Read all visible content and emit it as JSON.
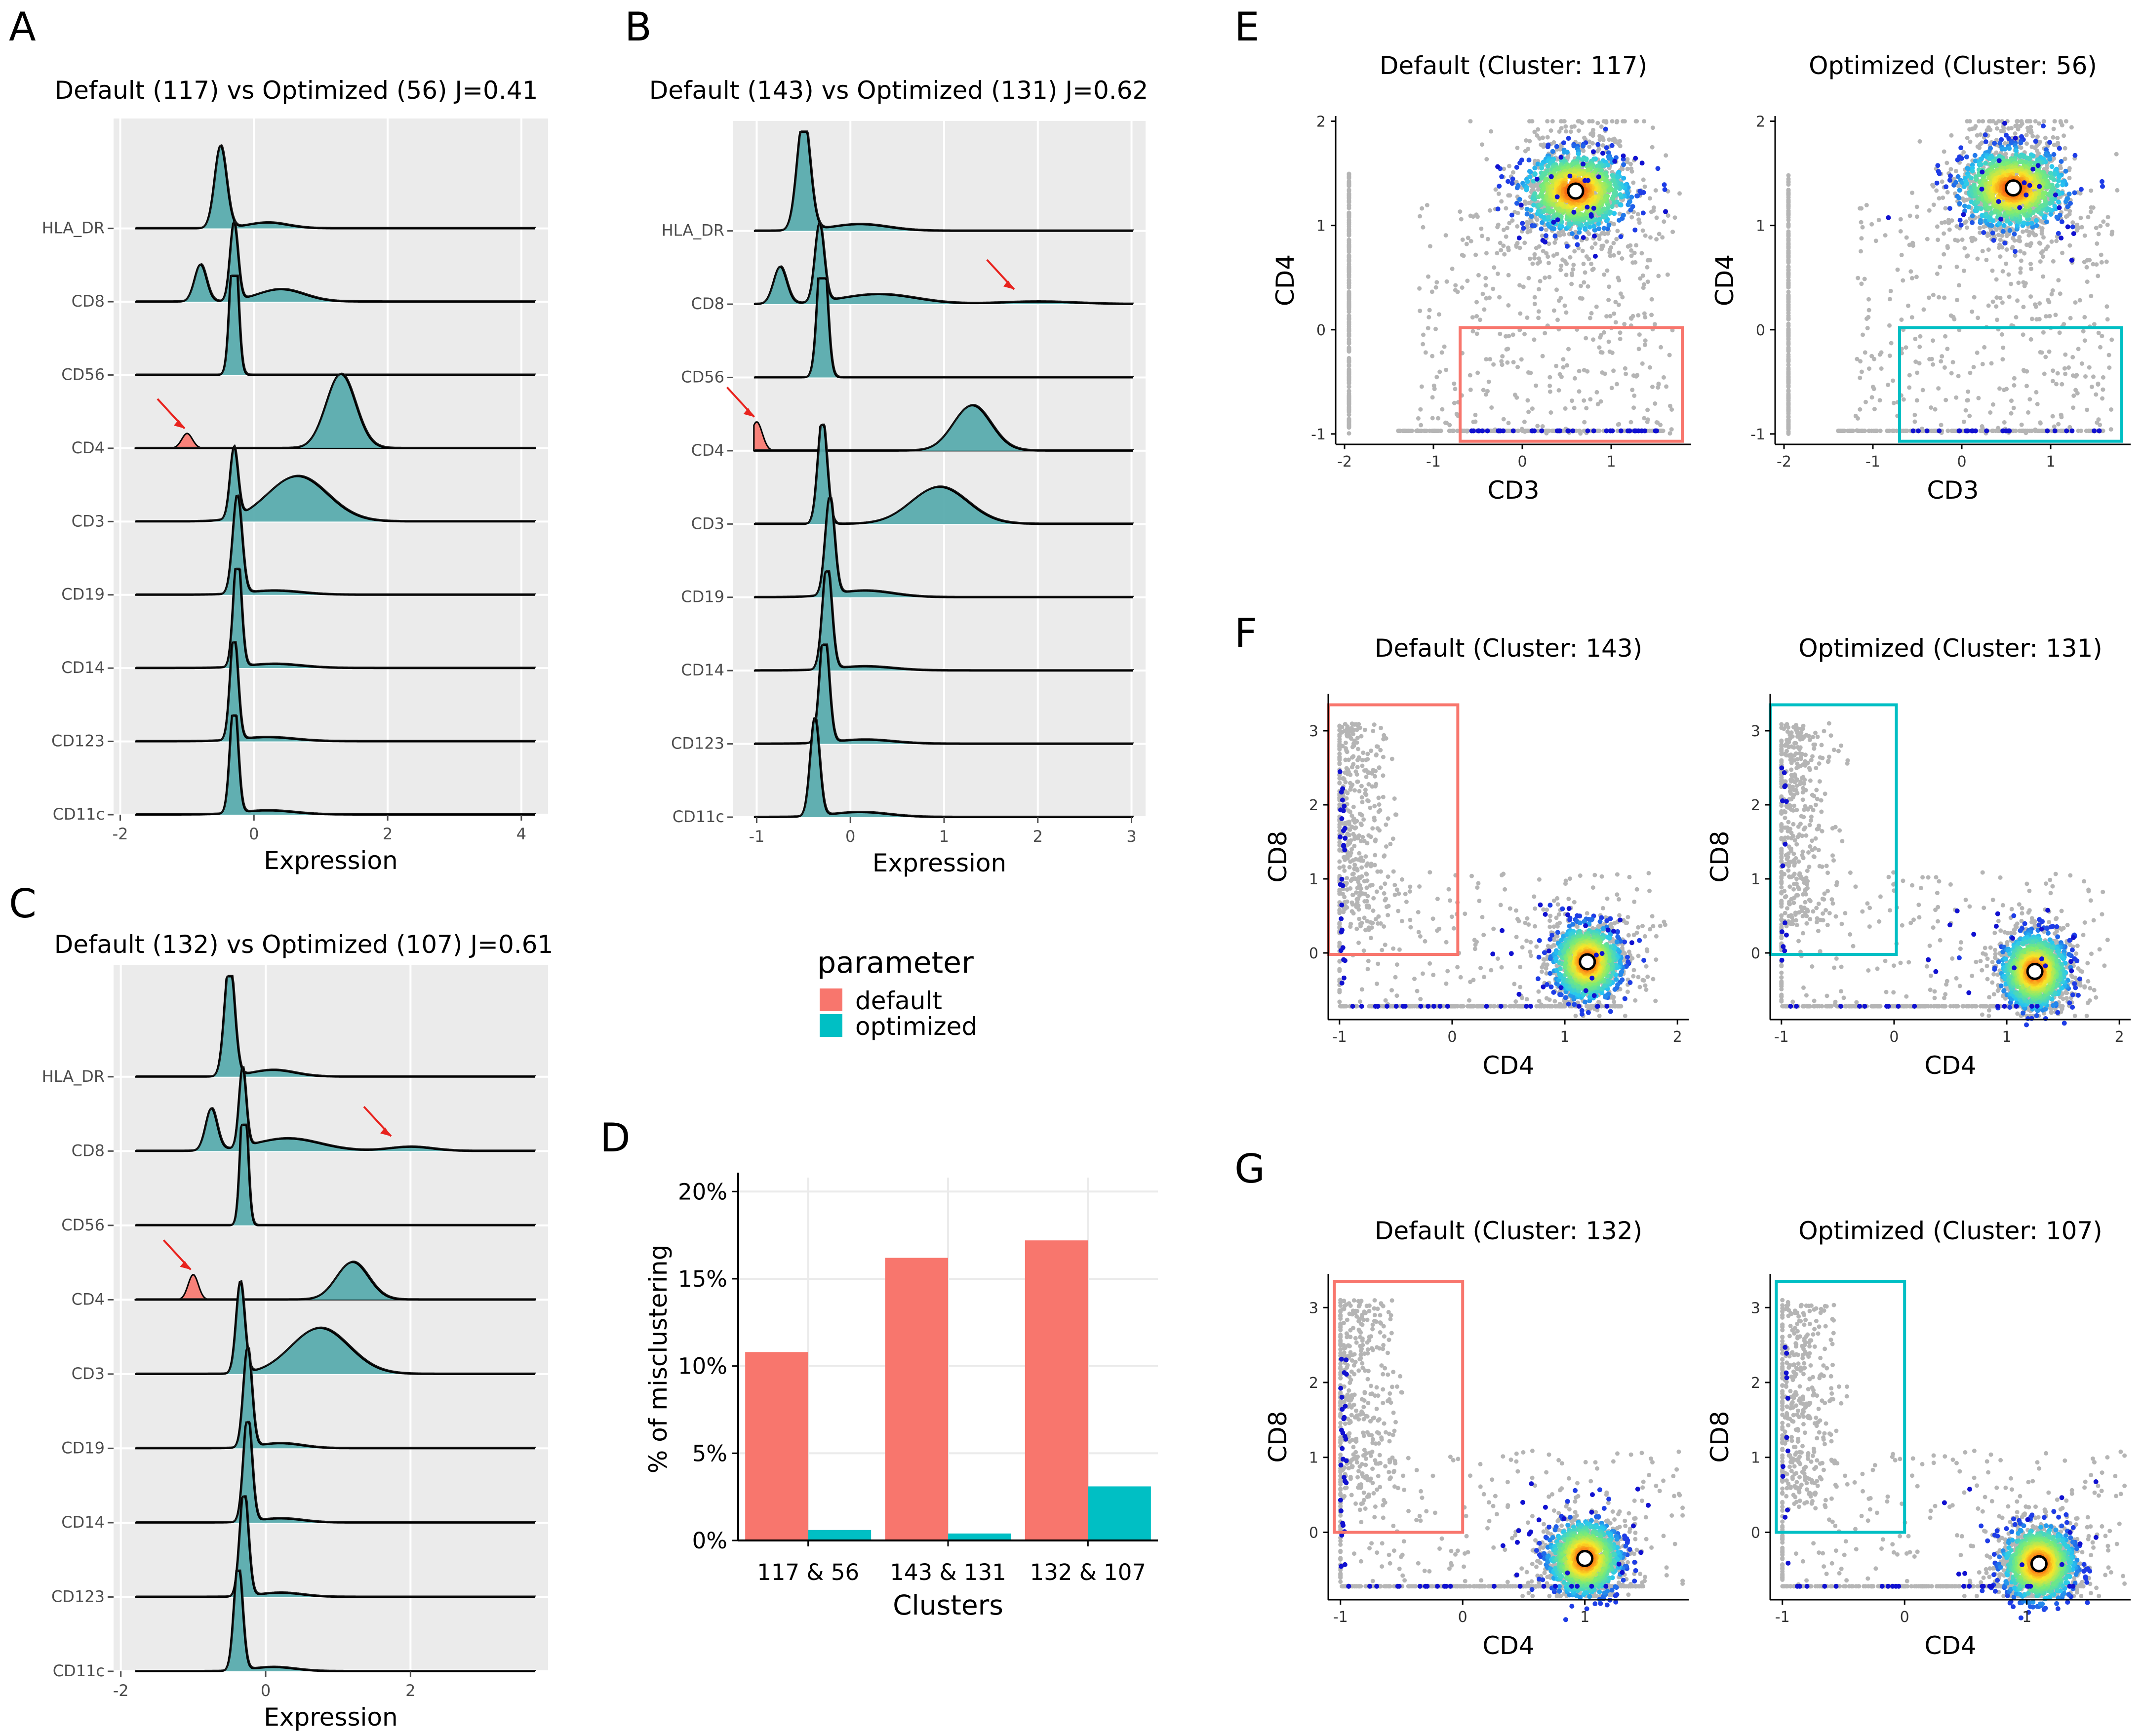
{
  "colors": {
    "default": "#F8766D",
    "optimized": "#00BFC4",
    "ridge_fill": "#5aacae",
    "panel_bg": "#EBEBEB",
    "point_grey": "#B5B5B5",
    "point_blue": "#1010D0",
    "arrow": "#E8231E"
  },
  "chart_data": [
    {
      "panel": "A",
      "type": "ridgeline",
      "title": "Default (117) vs Optimized (56) J=0.41",
      "xlabel": "Expression",
      "xticks": [
        -2,
        0,
        2,
        4
      ],
      "xlim": [
        -2.1,
        4.4
      ],
      "markers": [
        "HLA_DR",
        "CD8",
        "CD56",
        "CD4",
        "CD3",
        "CD19",
        "CD14",
        "CD123",
        "CD11c"
      ],
      "ridges": [
        {
          "marker": "HLA_DR",
          "peaks": [
            [
              -0.5,
              1.0,
              0.09
            ],
            [
              0.2,
              0.07,
              0.3
            ]
          ]
        },
        {
          "marker": "CD8",
          "peaks": [
            [
              -0.8,
              0.45,
              0.09
            ],
            [
              -0.3,
              0.95,
              0.06
            ],
            [
              0.4,
              0.15,
              0.35
            ]
          ]
        },
        {
          "marker": "CD56",
          "peaks": [
            [
              -0.3,
              1.8,
              0.06
            ]
          ]
        },
        {
          "marker": "CD4",
          "peaks": [
            [
              1.3,
              0.9,
              0.22
            ]
          ],
          "default_extra": [
            [
              -1.0,
              0.18,
              0.08
            ]
          ],
          "arrow": -1.0
        },
        {
          "marker": "CD3",
          "peaks": [
            [
              -0.3,
              0.85,
              0.06
            ],
            [
              0.65,
              0.55,
              0.45
            ]
          ]
        },
        {
          "marker": "CD19",
          "peaks": [
            [
              -0.25,
              1.2,
              0.07
            ],
            [
              0.3,
              0.05,
              0.4
            ]
          ]
        },
        {
          "marker": "CD14",
          "peaks": [
            [
              -0.25,
              1.4,
              0.06
            ],
            [
              0.3,
              0.05,
              0.4
            ]
          ]
        },
        {
          "marker": "CD123",
          "peaks": [
            [
              -0.3,
              1.3,
              0.06
            ],
            [
              0.2,
              0.05,
              0.4
            ]
          ]
        },
        {
          "marker": "CD11c",
          "peaks": [
            [
              -0.3,
              1.4,
              0.06
            ],
            [
              0.2,
              0.05,
              0.4
            ]
          ]
        }
      ]
    },
    {
      "panel": "B",
      "type": "ridgeline",
      "title": "Default (143) vs Optimized (131) J=0.62",
      "xlabel": "Expression",
      "xticks": [
        -1,
        0,
        1,
        2,
        3
      ],
      "xlim": [
        -1.25,
        3.15
      ],
      "markers": [
        "HLA_DR",
        "CD8",
        "CD56",
        "CD4",
        "CD3",
        "CD19",
        "CD14",
        "CD123",
        "CD11c"
      ],
      "ridges": [
        {
          "marker": "HLA_DR",
          "peaks": [
            [
              -0.5,
              1.4,
              0.07
            ],
            [
              0.1,
              0.08,
              0.3
            ]
          ]
        },
        {
          "marker": "CD8",
          "peaks": [
            [
              -0.75,
              0.45,
              0.07
            ],
            [
              -0.33,
              0.95,
              0.05
            ],
            [
              0.3,
              0.12,
              0.4
            ],
            [
              2.0,
              0.03,
              0.4
            ]
          ],
          "arrow": 1.8
        },
        {
          "marker": "CD56",
          "peaks": [
            [
              -0.3,
              1.8,
              0.05
            ]
          ]
        },
        {
          "marker": "CD4",
          "peaks": [
            [
              1.3,
              0.55,
              0.2
            ]
          ],
          "default_extra": [
            [
              -1.0,
              0.35,
              0.06
            ]
          ],
          "arrow": -1.0
        },
        {
          "marker": "CD3",
          "peaks": [
            [
              -0.3,
              1.3,
              0.05
            ],
            [
              0.95,
              0.45,
              0.3
            ]
          ]
        },
        {
          "marker": "CD19",
          "peaks": [
            [
              -0.22,
              1.2,
              0.05
            ],
            [
              0.15,
              0.08,
              0.3
            ]
          ]
        },
        {
          "marker": "CD14",
          "peaks": [
            [
              -0.25,
              1.3,
              0.05
            ],
            [
              0.15,
              0.05,
              0.3
            ]
          ]
        },
        {
          "marker": "CD123",
          "peaks": [
            [
              -0.28,
              1.4,
              0.05
            ],
            [
              0.15,
              0.05,
              0.3
            ]
          ]
        },
        {
          "marker": "CD11c",
          "peaks": [
            [
              -0.38,
              1.2,
              0.05
            ],
            [
              0.1,
              0.06,
              0.3
            ]
          ]
        }
      ]
    },
    {
      "panel": "C",
      "type": "ridgeline",
      "title": "Default (132) vs Optimized (107) J=0.61",
      "xlabel": "Expression",
      "xticks": [
        -2,
        0,
        2
      ],
      "xlim": [
        -2.1,
        3.9
      ],
      "markers": [
        "HLA_DR",
        "CD8",
        "CD56",
        "CD4",
        "CD3",
        "CD19",
        "CD14",
        "CD123",
        "CD11c"
      ],
      "ridges": [
        {
          "marker": "HLA_DR",
          "peaks": [
            [
              -0.5,
              1.4,
              0.07
            ],
            [
              0.1,
              0.08,
              0.3
            ]
          ]
        },
        {
          "marker": "CD8",
          "peaks": [
            [
              -0.75,
              0.5,
              0.08
            ],
            [
              -0.32,
              0.95,
              0.05
            ],
            [
              0.3,
              0.15,
              0.45
            ],
            [
              2.0,
              0.05,
              0.3
            ]
          ],
          "arrow": 1.8
        },
        {
          "marker": "CD56",
          "peaks": [
            [
              -0.3,
              1.7,
              0.05
            ]
          ]
        },
        {
          "marker": "CD4",
          "peaks": [
            [
              1.2,
              0.45,
              0.22
            ]
          ],
          "default_extra": [
            [
              -1.0,
              0.3,
              0.07
            ]
          ],
          "arrow": -1.0
        },
        {
          "marker": "CD3",
          "peaks": [
            [
              -0.35,
              1.1,
              0.06
            ],
            [
              0.75,
              0.55,
              0.4
            ]
          ]
        },
        {
          "marker": "CD19",
          "peaks": [
            [
              -0.25,
              1.2,
              0.06
            ],
            [
              0.2,
              0.06,
              0.3
            ]
          ]
        },
        {
          "marker": "CD14",
          "peaks": [
            [
              -0.25,
              1.3,
              0.06
            ],
            [
              0.2,
              0.05,
              0.3
            ]
          ]
        },
        {
          "marker": "CD123",
          "peaks": [
            [
              -0.3,
              1.3,
              0.06
            ],
            [
              0.2,
              0.05,
              0.3
            ]
          ]
        },
        {
          "marker": "CD11c",
          "peaks": [
            [
              -0.38,
              1.3,
              0.06
            ],
            [
              0.1,
              0.05,
              0.3
            ]
          ]
        }
      ]
    },
    {
      "panel": "D",
      "type": "bar",
      "categories": [
        "117 & 56",
        "143 & 131",
        "132 & 107"
      ],
      "series": [
        {
          "name": "default",
          "values": [
            10.8,
            16.2,
            17.2
          ]
        },
        {
          "name": "optimized",
          "values": [
            0.6,
            0.4,
            3.1
          ]
        }
      ],
      "xlabel": "Clusters",
      "ylabel": "% of misclustering",
      "yticks": [
        0,
        5,
        10,
        15,
        20
      ],
      "ytick_labels": [
        "0%",
        "5%",
        "10%",
        "15%",
        "20%"
      ],
      "ylim": [
        0,
        20.8
      ]
    },
    {
      "panel": "E",
      "type": "scatter",
      "plots": [
        {
          "title": "Default (Cluster: 117)",
          "gate_color": "default",
          "centroid": [
            0.6,
            1.33
          ],
          "gate": [
            -0.7,
            1.8,
            -1.07,
            0.02
          ]
        },
        {
          "title": "Optimized (Cluster: 56)",
          "gate_color": "optimized",
          "centroid": [
            0.58,
            1.36
          ],
          "gate": [
            -0.7,
            1.8,
            -1.07,
            0.02
          ]
        }
      ],
      "xlabel": "CD3",
      "ylabel": "CD4",
      "xticks": [
        -2,
        -1,
        0,
        1
      ],
      "yticks": [
        -1,
        0,
        1,
        2
      ],
      "xlim": [
        -2.1,
        1.9
      ],
      "ylim": [
        -1.1,
        2.05
      ]
    },
    {
      "panel": "F",
      "type": "scatter",
      "plots": [
        {
          "title": "Default (Cluster: 143)",
          "gate_color": "default",
          "centroid": [
            1.2,
            -0.12
          ],
          "gate": [
            -1.1,
            0.05,
            -0.02,
            3.35
          ]
        },
        {
          "title": "Optimized (Cluster: 131)",
          "gate_color": "optimized",
          "centroid": [
            1.25,
            -0.25
          ],
          "gate": [
            -1.1,
            0.02,
            -0.02,
            3.35
          ]
        }
      ],
      "xlabel": "CD4",
      "ylabel": "CD8",
      "xticks": [
        -1,
        0,
        1,
        2
      ],
      "yticks": [
        0,
        1,
        2,
        3
      ],
      "xlim": [
        -1.1,
        2.1
      ],
      "ylim": [
        -0.9,
        3.5
      ]
    },
    {
      "panel": "G",
      "type": "scatter",
      "plots": [
        {
          "title": "Default (Cluster: 132)",
          "gate_color": "default",
          "centroid": [
            1.0,
            -0.35
          ],
          "gate": [
            -1.05,
            0.0,
            0.0,
            3.35
          ]
        },
        {
          "title": "Optimized (Cluster: 107)",
          "gate_color": "optimized",
          "centroid": [
            1.1,
            -0.42
          ],
          "gate": [
            -1.05,
            0.0,
            0.0,
            3.35
          ]
        }
      ],
      "xlabel": "CD4",
      "ylabel": "CD8",
      "xticks": [
        -1,
        0,
        1
      ],
      "yticks": [
        0,
        1,
        2,
        3
      ],
      "xlim": [
        -1.1,
        1.85
      ],
      "ylim": [
        -0.9,
        3.45
      ]
    }
  ],
  "legend": {
    "title": "parameter",
    "entries": [
      {
        "label": "default",
        "color": "default"
      },
      {
        "label": "optimized",
        "color": "optimized"
      }
    ]
  }
}
